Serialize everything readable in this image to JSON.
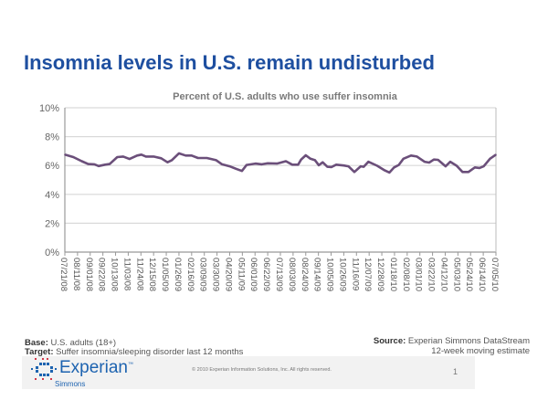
{
  "title": "Insomnia levels in U.S. remain undisturbed",
  "chart_data": {
    "type": "line",
    "title": "Percent of U.S. adults who use suffer insomnia",
    "xlabel": "",
    "ylabel": "",
    "ylim": [
      0,
      10
    ],
    "y_ticks": [
      "0%",
      "2%",
      "4%",
      "6%",
      "8%",
      "10%"
    ],
    "x_unit": "weeks since 07/21/08",
    "xlim": [
      0,
      102
    ],
    "x_tick_labels": [
      "07/21/08",
      "08/11/08",
      "09/01/08",
      "09/22/08",
      "10/13/08",
      "11/03/08",
      "11/24/08",
      "12/15/08",
      "01/05/09",
      "01/26/09",
      "02/16/09",
      "03/09/09",
      "03/30/09",
      "04/20/09",
      "05/11/09",
      "06/01/09",
      "06/22/09",
      "07/13/09",
      "08/03/09",
      "08/24/09",
      "09/14/09",
      "10/05/09",
      "10/26/09",
      "11/16/09",
      "12/07/09",
      "12/28/09",
      "01/18/10",
      "02/08/10",
      "03/01/10",
      "03/22/10",
      "04/12/10",
      "05/03/10",
      "05/24/10",
      "06/14/10",
      "07/05/10"
    ],
    "grid": true,
    "series": [
      {
        "name": "Insomnia",
        "color": "#6b4f7a",
        "x": [
          0,
          2,
          4,
          5.5,
          7,
          8,
          9.5,
          10.6,
          12.4,
          13.8,
          15.3,
          17.1,
          18.1,
          19.2,
          21,
          22.8,
          24.3,
          25.3,
          27,
          28.6,
          30,
          31.5,
          33.6,
          35.8,
          37.2,
          39,
          40.5,
          41.9,
          43,
          45.1,
          46.6,
          48,
          50.2,
          52.3,
          53.8,
          55.2,
          55.9,
          57,
          58.1,
          59.2,
          60.1,
          61,
          62.1,
          63.1,
          64.2,
          66,
          67.1,
          68.5,
          70,
          70.7,
          71.8,
          73.9,
          75.7,
          76.8,
          77.9,
          79,
          80.1,
          81.9,
          83.3,
          85.1,
          86.2,
          87.3,
          88.3,
          90.1,
          91.2,
          92.7,
          94.1,
          95.5,
          97,
          98.1,
          99.1,
          100.6,
          102
        ],
        "values": [
          6.75,
          6.58,
          6.3,
          6.1,
          6.08,
          5.96,
          6.06,
          6.1,
          6.58,
          6.62,
          6.45,
          6.69,
          6.75,
          6.62,
          6.62,
          6.5,
          6.22,
          6.37,
          6.84,
          6.69,
          6.69,
          6.52,
          6.52,
          6.37,
          6.08,
          5.94,
          5.77,
          5.62,
          6.04,
          6.13,
          6.08,
          6.15,
          6.13,
          6.3,
          6.06,
          6.06,
          6.41,
          6.71,
          6.47,
          6.37,
          6.02,
          6.22,
          5.91,
          5.89,
          6.06,
          6.0,
          5.94,
          5.55,
          5.94,
          5.91,
          6.26,
          5.98,
          5.66,
          5.51,
          5.87,
          6.04,
          6.47,
          6.69,
          6.62,
          6.26,
          6.2,
          6.41,
          6.39,
          5.94,
          6.26,
          5.98,
          5.55,
          5.55,
          5.87,
          5.83,
          5.94,
          6.47,
          6.75
        ]
      }
    ]
  },
  "footer": {
    "base_label": "Base:",
    "base_value": " U.S. adults (18+)",
    "target_label": "Target:",
    "target_value": " Suffer insomnia/sleeping disorder last 12 months",
    "source_label": "Source:",
    "source_value": " Experian Simmons DataStream",
    "source_note": "12-week moving estimate",
    "logo": "Experian",
    "logo_tm": "™",
    "logo_sub": "Simmons",
    "copyright": "© 2010 Experian Information Solutions, Inc.  All rights reserved.",
    "page_number": "1"
  }
}
